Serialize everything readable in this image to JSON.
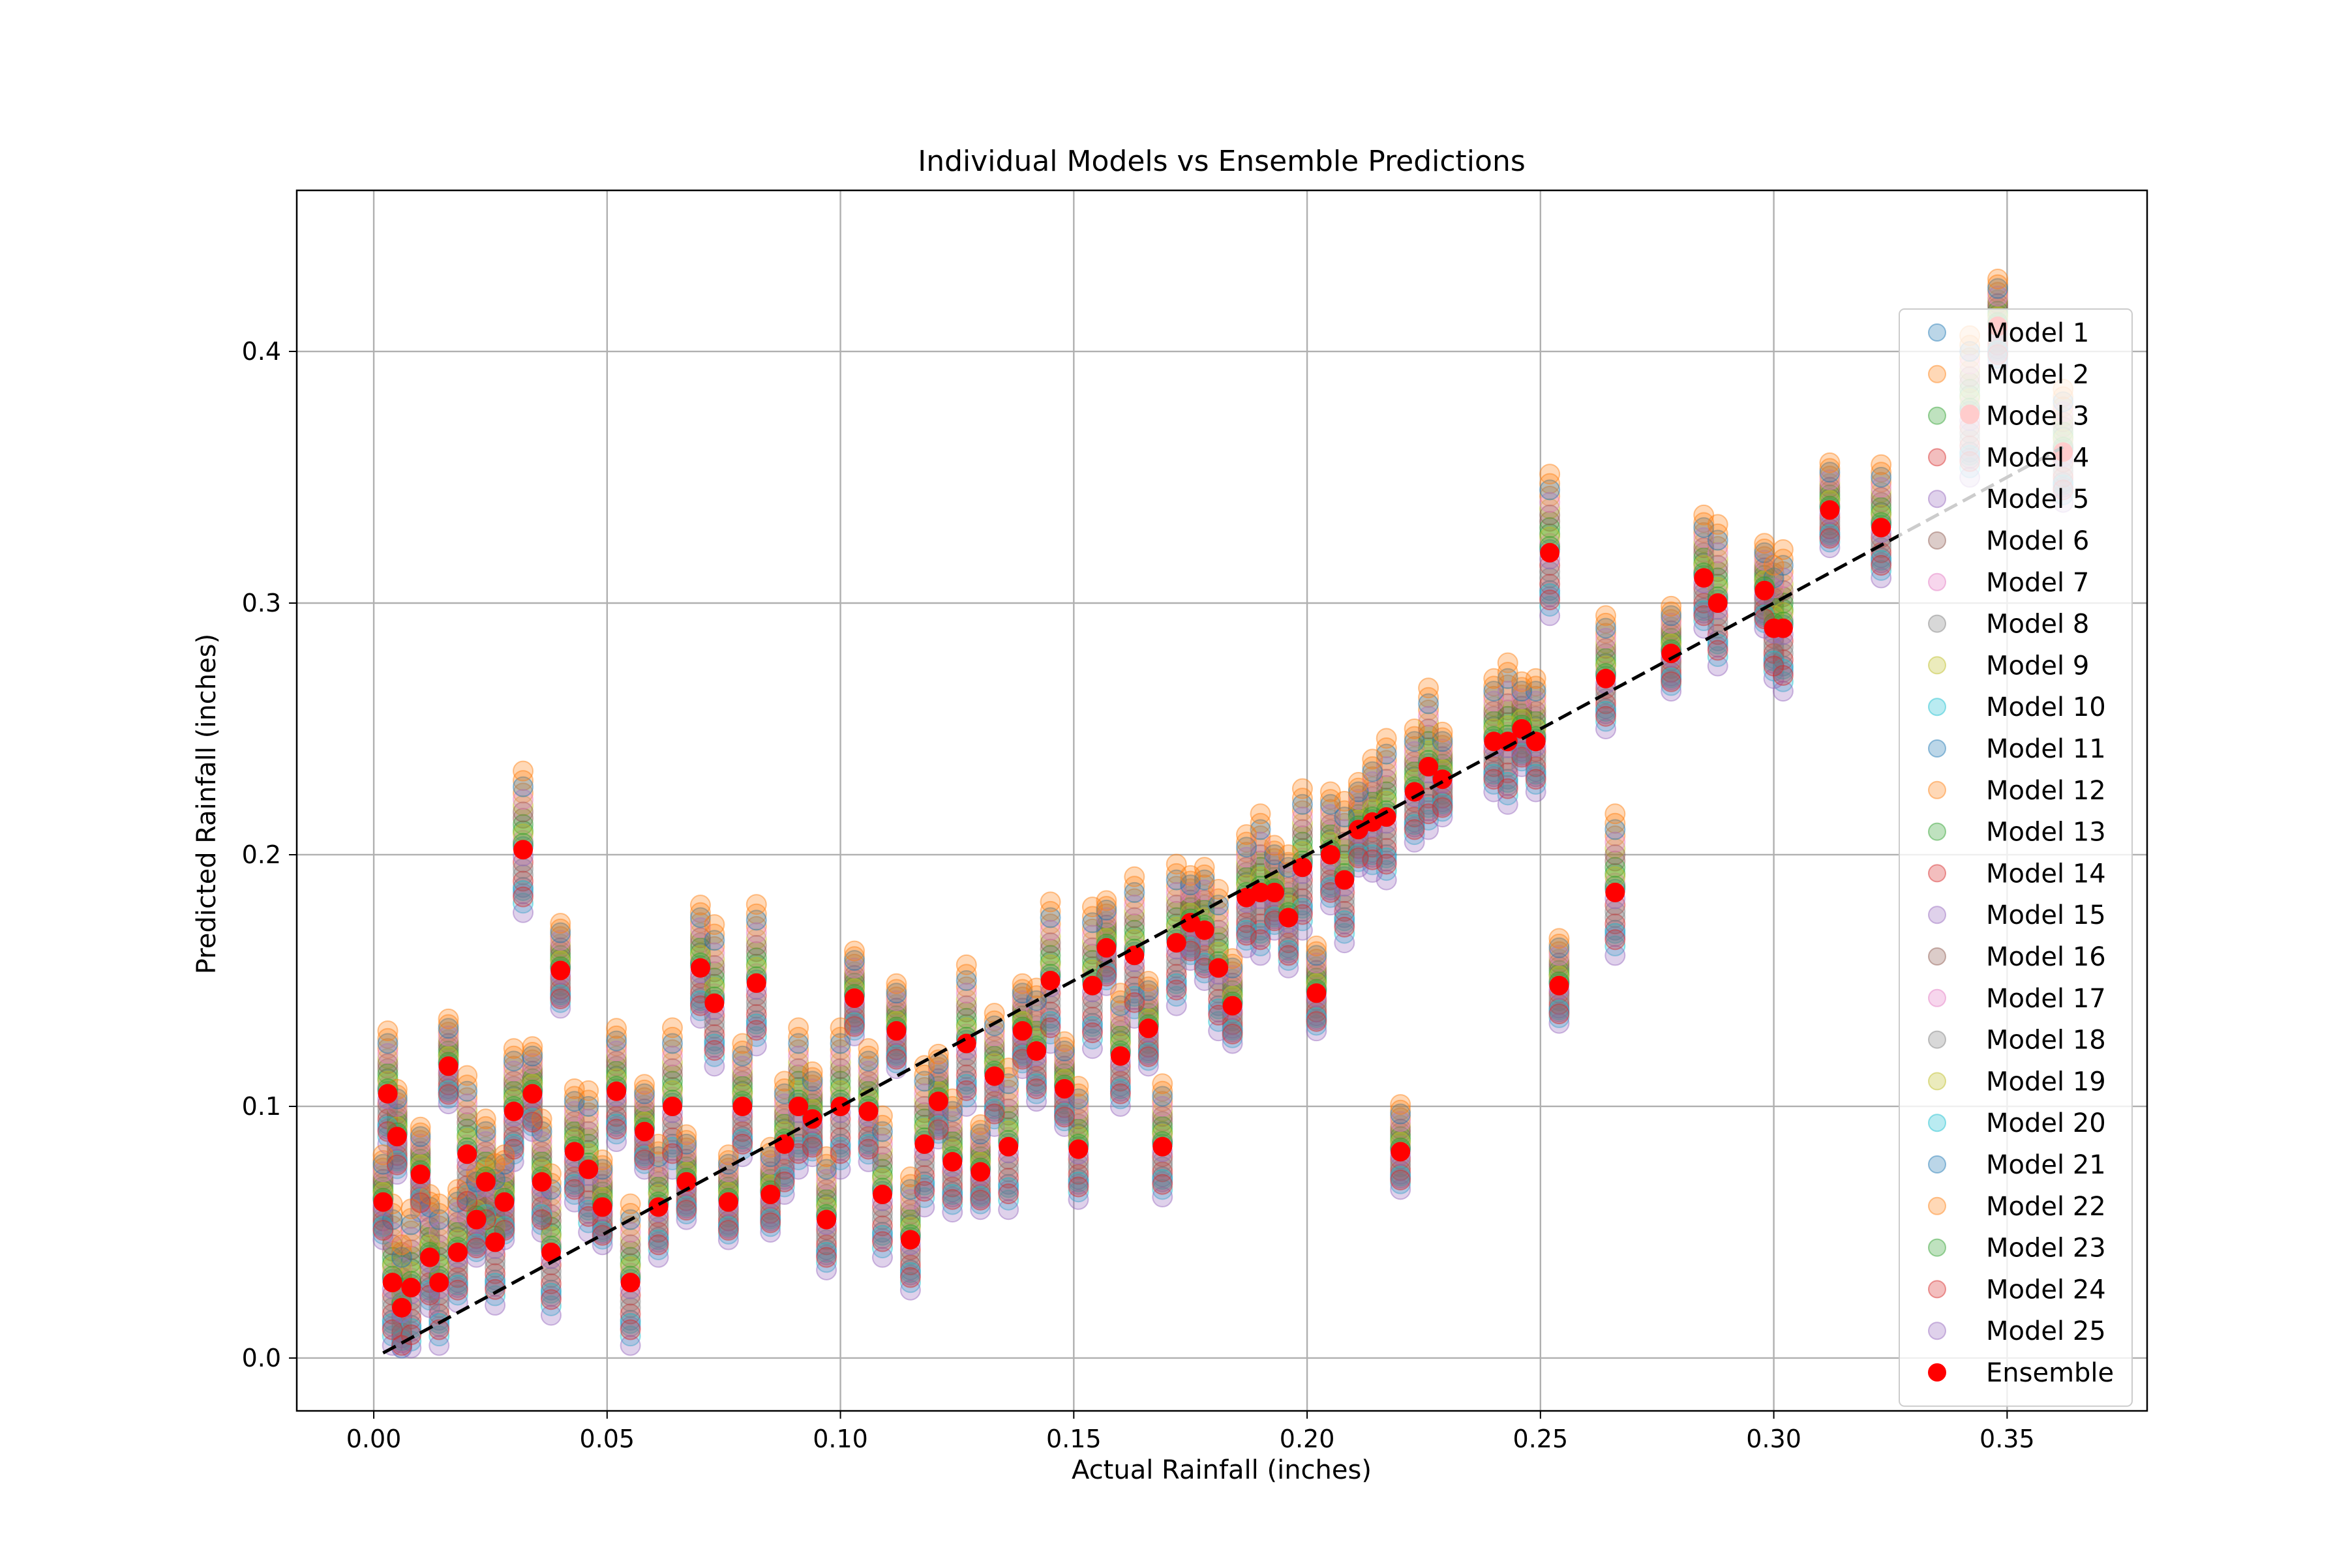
{
  "chart_data": {
    "type": "scatter",
    "title": "Individual Models vs Ensemble Predictions",
    "xlabel": "Actual Rainfall (inches)",
    "ylabel": "Predicted Rainfall (inches)",
    "xlim": [
      -0.0165,
      0.38
    ],
    "ylim": [
      -0.021,
      0.464
    ],
    "x_ticks": [
      0.0,
      0.05,
      0.1,
      0.15,
      0.2,
      0.25,
      0.3,
      0.35
    ],
    "x_tick_labels": [
      "0.00",
      "0.05",
      "0.10",
      "0.15",
      "0.20",
      "0.25",
      "0.30",
      "0.35"
    ],
    "y_ticks": [
      0.0,
      0.1,
      0.2,
      0.3,
      0.4
    ],
    "y_tick_labels": [
      "0.0",
      "0.1",
      "0.2",
      "0.3",
      "0.4"
    ],
    "grid": true,
    "legend_position": "right",
    "reference_line": {
      "style": "dashed",
      "color": "#000000",
      "x": [
        0.002,
        0.362
      ],
      "y": [
        0.002,
        0.362
      ]
    },
    "actual_x": [
      0.002,
      0.003,
      0.004,
      0.005,
      0.006,
      0.008,
      0.01,
      0.012,
      0.014,
      0.016,
      0.018,
      0.02,
      0.022,
      0.024,
      0.026,
      0.028,
      0.03,
      0.032,
      0.034,
      0.036,
      0.038,
      0.04,
      0.043,
      0.046,
      0.049,
      0.052,
      0.055,
      0.058,
      0.061,
      0.064,
      0.067,
      0.07,
      0.073,
      0.076,
      0.079,
      0.082,
      0.085,
      0.088,
      0.091,
      0.094,
      0.097,
      0.1,
      0.103,
      0.106,
      0.109,
      0.112,
      0.115,
      0.118,
      0.121,
      0.124,
      0.127,
      0.13,
      0.133,
      0.136,
      0.139,
      0.142,
      0.145,
      0.148,
      0.151,
      0.154,
      0.157,
      0.16,
      0.163,
      0.166,
      0.169,
      0.172,
      0.175,
      0.178,
      0.181,
      0.184,
      0.187,
      0.19,
      0.193,
      0.196,
      0.199,
      0.202,
      0.205,
      0.208,
      0.211,
      0.214,
      0.217,
      0.22,
      0.223,
      0.226,
      0.229,
      0.24,
      0.243,
      0.246,
      0.249,
      0.252,
      0.254,
      0.264,
      0.266,
      0.278,
      0.285,
      0.288,
      0.298,
      0.3,
      0.302,
      0.312,
      0.323,
      0.342,
      0.348,
      0.362
    ],
    "ensemble_y": [
      0.062,
      0.105,
      0.03,
      0.088,
      0.02,
      0.028,
      0.073,
      0.04,
      0.03,
      0.116,
      0.042,
      0.081,
      0.055,
      0.07,
      0.046,
      0.062,
      0.098,
      0.202,
      0.105,
      0.07,
      0.042,
      0.154,
      0.082,
      0.075,
      0.06,
      0.106,
      0.03,
      0.09,
      0.06,
      0.1,
      0.07,
      0.155,
      0.141,
      0.062,
      0.1,
      0.149,
      0.065,
      0.085,
      0.1,
      0.095,
      0.055,
      0.1,
      0.143,
      0.098,
      0.065,
      0.13,
      0.047,
      0.085,
      0.102,
      0.078,
      0.125,
      0.074,
      0.112,
      0.084,
      0.13,
      0.122,
      0.15,
      0.107,
      0.083,
      0.148,
      0.163,
      0.12,
      0.16,
      0.131,
      0.084,
      0.165,
      0.173,
      0.17,
      0.155,
      0.14,
      0.183,
      0.185,
      0.185,
      0.175,
      0.195,
      0.145,
      0.2,
      0.19,
      0.21,
      0.213,
      0.215,
      0.082,
      0.225,
      0.235,
      0.23,
      0.245,
      0.245,
      0.25,
      0.245,
      0.32,
      0.148,
      0.27,
      0.185,
      0.28,
      0.31,
      0.3,
      0.305,
      0.29,
      0.29,
      0.337,
      0.33,
      0.375,
      0.41,
      0.36
    ],
    "series": [
      {
        "name": "Model 1",
        "color": "#1f77b4"
      },
      {
        "name": "Model 2",
        "color": "#ff7f0e"
      },
      {
        "name": "Model 3",
        "color": "#2ca02c"
      },
      {
        "name": "Model 4",
        "color": "#d62728"
      },
      {
        "name": "Model 5",
        "color": "#9467bd"
      },
      {
        "name": "Model 6",
        "color": "#8c564b"
      },
      {
        "name": "Model 7",
        "color": "#e377c2"
      },
      {
        "name": "Model 8",
        "color": "#7f7f7f"
      },
      {
        "name": "Model 9",
        "color": "#bcbd22"
      },
      {
        "name": "Model 10",
        "color": "#17becf"
      },
      {
        "name": "Model 11",
        "color": "#1f77b4"
      },
      {
        "name": "Model 12",
        "color": "#ff7f0e"
      },
      {
        "name": "Model 13",
        "color": "#2ca02c"
      },
      {
        "name": "Model 14",
        "color": "#d62728"
      },
      {
        "name": "Model 15",
        "color": "#9467bd"
      },
      {
        "name": "Model 16",
        "color": "#8c564b"
      },
      {
        "name": "Model 17",
        "color": "#e377c2"
      },
      {
        "name": "Model 18",
        "color": "#7f7f7f"
      },
      {
        "name": "Model 19",
        "color": "#bcbd22"
      },
      {
        "name": "Model 20",
        "color": "#17becf"
      },
      {
        "name": "Model 21",
        "color": "#1f77b4"
      },
      {
        "name": "Model 22",
        "color": "#ff7f0e"
      },
      {
        "name": "Model 23",
        "color": "#2ca02c"
      },
      {
        "name": "Model 24",
        "color": "#d62728"
      },
      {
        "name": "Model 25",
        "color": "#9467bd"
      },
      {
        "name": "Ensemble",
        "color": "#ff0000"
      }
    ],
    "model_offsets": [
      -0.012,
      0.018,
      0.006,
      -0.004,
      -0.014,
      0.01,
      0.003,
      -0.008,
      0.014,
      -0.017,
      0.001,
      0.022,
      0.008,
      -0.01,
      -0.02,
      0.012,
      0.016,
      -0.006,
      0.005,
      -0.013,
      0.02,
      0.025,
      0.002,
      -0.015,
      -0.002
    ]
  }
}
